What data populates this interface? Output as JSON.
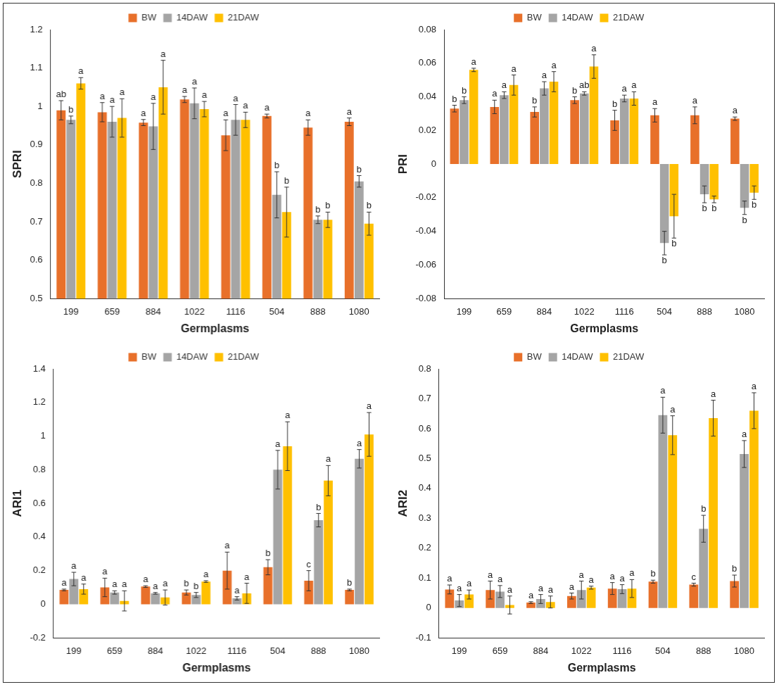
{
  "chart_data": [
    {
      "type": "bar",
      "y_label": "SPRI",
      "x_label": "Germplasms",
      "legend": "top",
      "grid": false,
      "categories": [
        "199",
        "659",
        "884",
        "1022",
        "1116",
        "504",
        "888",
        "1080"
      ],
      "ylim": [
        0.5,
        1.2
      ],
      "yticks": [
        0.5,
        0.6,
        0.7,
        0.8,
        0.9,
        1,
        1.1,
        1.2
      ],
      "series": [
        {
          "name": "BW",
          "color": "#e8702a",
          "values": [
            0.99,
            0.985,
            0.958,
            1.018,
            0.925,
            0.975,
            0.945,
            0.96
          ],
          "errors": [
            0.025,
            0.025,
            0.008,
            0.008,
            0.04,
            0.005,
            0.02,
            0.01
          ],
          "annotations": [
            "ab",
            "a",
            "a",
            "a",
            "a",
            "a",
            "a",
            "a"
          ]
        },
        {
          "name": "14DAW",
          "color": "#a5a5a5",
          "values": [
            0.965,
            0.96,
            0.948,
            1.008,
            0.965,
            0.77,
            0.705,
            0.805
          ],
          "errors": [
            0.01,
            0.04,
            0.06,
            0.04,
            0.04,
            0.06,
            0.01,
            0.015
          ],
          "annotations": [
            "b",
            "a",
            "a",
            "a",
            "a",
            "b",
            "b",
            "b"
          ]
        },
        {
          "name": "21DAW",
          "color": "#ffc000",
          "values": [
            1.06,
            0.97,
            1.05,
            0.993,
            0.965,
            0.725,
            0.705,
            0.695
          ],
          "errors": [
            0.015,
            0.05,
            0.07,
            0.02,
            0.02,
            0.065,
            0.02,
            0.03
          ],
          "annotations": [
            "a",
            "a",
            "a",
            "a",
            "a",
            "b",
            "b",
            "b"
          ]
        }
      ]
    },
    {
      "type": "bar",
      "y_label": "PRI",
      "x_label": "Germplasms",
      "legend": "top",
      "grid": false,
      "categories": [
        "199",
        "659",
        "884",
        "1022",
        "1116",
        "504",
        "888",
        "1080"
      ],
      "ylim": [
        -0.08,
        0.08
      ],
      "yticks": [
        -0.08,
        -0.06,
        -0.04,
        -0.02,
        0,
        0.02,
        0.04,
        0.06,
        0.08
      ],
      "series": [
        {
          "name": "BW",
          "color": "#e8702a",
          "values": [
            0.033,
            0.034,
            0.031,
            0.038,
            0.026,
            0.029,
            0.029,
            0.027
          ],
          "errors": [
            0.002,
            0.004,
            0.003,
            0.002,
            0.006,
            0.004,
            0.005,
            0.001
          ],
          "annotations": [
            "b",
            "a",
            "b",
            "b",
            "b",
            "a",
            "a",
            "a"
          ]
        },
        {
          "name": "14DAW",
          "color": "#a5a5a5",
          "values": [
            0.038,
            0.041,
            0.045,
            0.042,
            0.039,
            -0.047,
            -0.018,
            -0.026
          ],
          "errors": [
            0.002,
            0.002,
            0.004,
            0.001,
            0.002,
            0.007,
            0.005,
            0.004
          ],
          "annotations": [
            "b",
            "a",
            "a",
            "ab",
            "a",
            "b",
            "b",
            "b"
          ]
        },
        {
          "name": "21DAW",
          "color": "#ffc000",
          "values": [
            0.056,
            0.047,
            0.049,
            0.058,
            0.039,
            -0.031,
            -0.021,
            -0.017
          ],
          "errors": [
            0.001,
            0.006,
            0.006,
            0.007,
            0.004,
            0.013,
            0.002,
            0.004
          ],
          "annotations": [
            "a",
            "a",
            "a",
            "a",
            "a",
            "b",
            "b",
            "b"
          ]
        }
      ]
    },
    {
      "type": "bar",
      "y_label": "ARI1",
      "x_label": "Germplasms",
      "legend": "top",
      "grid": false,
      "categories": [
        "199",
        "659",
        "884",
        "1022",
        "1116",
        "504",
        "888",
        "1080"
      ],
      "ylim": [
        -0.2,
        1.4
      ],
      "yticks": [
        -0.2,
        0,
        0.2,
        0.4,
        0.6,
        0.8,
        1,
        1.2,
        1.4
      ],
      "series": [
        {
          "name": "BW",
          "color": "#e8702a",
          "values": [
            0.085,
            0.1,
            0.105,
            0.07,
            0.2,
            0.22,
            0.14,
            0.085
          ],
          "errors": [
            0.005,
            0.055,
            0.005,
            0.015,
            0.11,
            0.045,
            0.06,
            0.005
          ],
          "annotations": [
            "a",
            "a",
            "a",
            "b",
            "a",
            "b",
            "c",
            "b"
          ]
        },
        {
          "name": "14DAW",
          "color": "#a5a5a5",
          "values": [
            0.15,
            0.07,
            0.065,
            0.055,
            0.035,
            0.8,
            0.5,
            0.865
          ],
          "errors": [
            0.04,
            0.01,
            0.005,
            0.015,
            0.01,
            0.115,
            0.04,
            0.055
          ],
          "annotations": [
            "a",
            "a",
            "a",
            "b",
            "a",
            "a",
            "b",
            "a"
          ]
        },
        {
          "name": "21DAW",
          "color": "#ffc000",
          "values": [
            0.09,
            0.02,
            0.04,
            0.135,
            0.065,
            0.94,
            0.735,
            1.01
          ],
          "errors": [
            0.03,
            0.06,
            0.045,
            0.005,
            0.06,
            0.145,
            0.09,
            0.13
          ],
          "annotations": [
            "a",
            "a",
            "a",
            "a",
            "a",
            "a",
            "a",
            "a"
          ]
        }
      ]
    },
    {
      "type": "bar",
      "y_label": "ARI2",
      "x_label": "Germplasms",
      "legend": "top",
      "grid": false,
      "categories": [
        "199",
        "659",
        "884",
        "1022",
        "1116",
        "504",
        "888",
        "1080"
      ],
      "ylim": [
        -0.1,
        0.8
      ],
      "yticks": [
        -0.1,
        0,
        0.1,
        0.2,
        0.3,
        0.4,
        0.5,
        0.6,
        0.7,
        0.8
      ],
      "series": [
        {
          "name": "BW",
          "color": "#e8702a",
          "values": [
            0.062,
            0.06,
            0.018,
            0.04,
            0.065,
            0.088,
            0.078,
            0.09
          ],
          "errors": [
            0.015,
            0.03,
            0.003,
            0.01,
            0.02,
            0.005,
            0.005,
            0.02
          ],
          "annotations": [
            "a",
            "a",
            "a",
            "a",
            "a",
            "b",
            "c",
            "b"
          ]
        },
        {
          "name": "14DAW",
          "color": "#a5a5a5",
          "values": [
            0.025,
            0.055,
            0.03,
            0.06,
            0.063,
            0.645,
            0.265,
            0.515
          ],
          "errors": [
            0.02,
            0.02,
            0.015,
            0.03,
            0.015,
            0.06,
            0.045,
            0.045
          ],
          "annotations": [
            "a",
            "a",
            "a",
            "a",
            "a",
            "a",
            "b",
            "a"
          ]
        },
        {
          "name": "21DAW",
          "color": "#ffc000",
          "values": [
            0.045,
            0.01,
            0.02,
            0.068,
            0.065,
            0.578,
            0.635,
            0.66
          ],
          "errors": [
            0.015,
            0.03,
            0.02,
            0.005,
            0.03,
            0.065,
            0.06,
            0.06
          ],
          "annotations": [
            "a",
            "a",
            "a",
            "a",
            "a",
            "a",
            "a",
            "a"
          ]
        }
      ]
    }
  ]
}
